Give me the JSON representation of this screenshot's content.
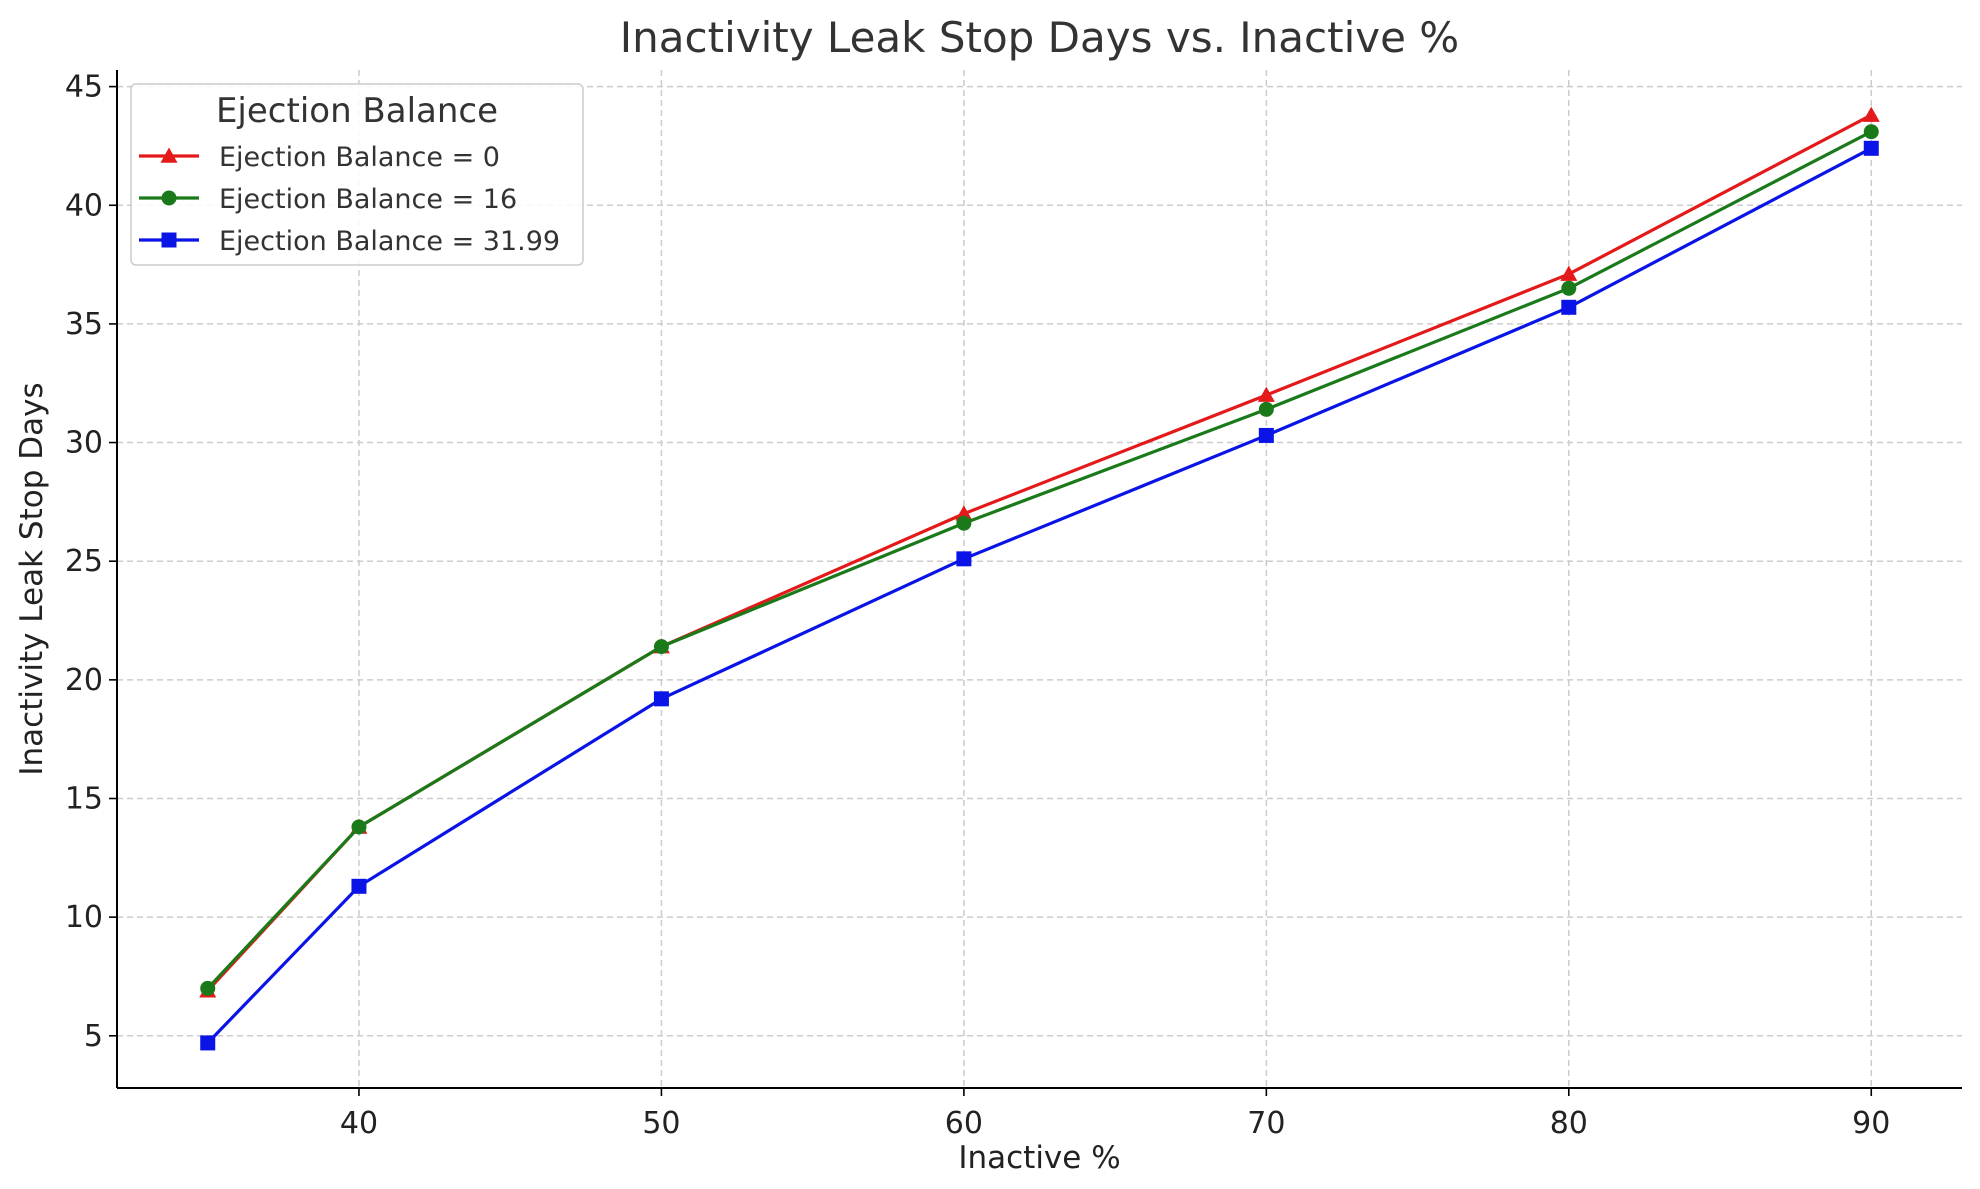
{
  "chart_data": {
    "type": "line",
    "title": "Inactivity Leak Stop Days vs. Inactive %",
    "xlabel": "Inactive %",
    "ylabel": "Inactivity Leak Stop Days",
    "x": [
      35,
      40,
      50,
      60,
      70,
      80,
      90
    ],
    "xlim": [
      32,
      93
    ],
    "ylim": [
      2.8,
      45.7
    ],
    "xticks": [
      40,
      50,
      60,
      70,
      80,
      90
    ],
    "yticks": [
      5,
      10,
      15,
      20,
      25,
      30,
      35,
      40,
      45
    ],
    "grid": true,
    "legend": {
      "title": "Ejection Balance",
      "placement": "top-left"
    },
    "series": [
      {
        "name": "Ejection Balance = 0",
        "color": "#e41a1a",
        "marker": "triangle",
        "values": [
          6.9,
          13.8,
          21.4,
          27.0,
          32.0,
          37.1,
          43.8
        ]
      },
      {
        "name": "Ejection Balance = 16",
        "color": "#1a7a1a",
        "marker": "circle",
        "values": [
          7.0,
          13.8,
          21.4,
          26.6,
          31.4,
          36.5,
          43.1
        ]
      },
      {
        "name": "Ejection Balance = 31.99",
        "color": "#0a14e6",
        "marker": "square",
        "values": [
          4.7,
          11.3,
          19.2,
          25.1,
          30.3,
          35.7,
          42.4
        ]
      }
    ]
  }
}
